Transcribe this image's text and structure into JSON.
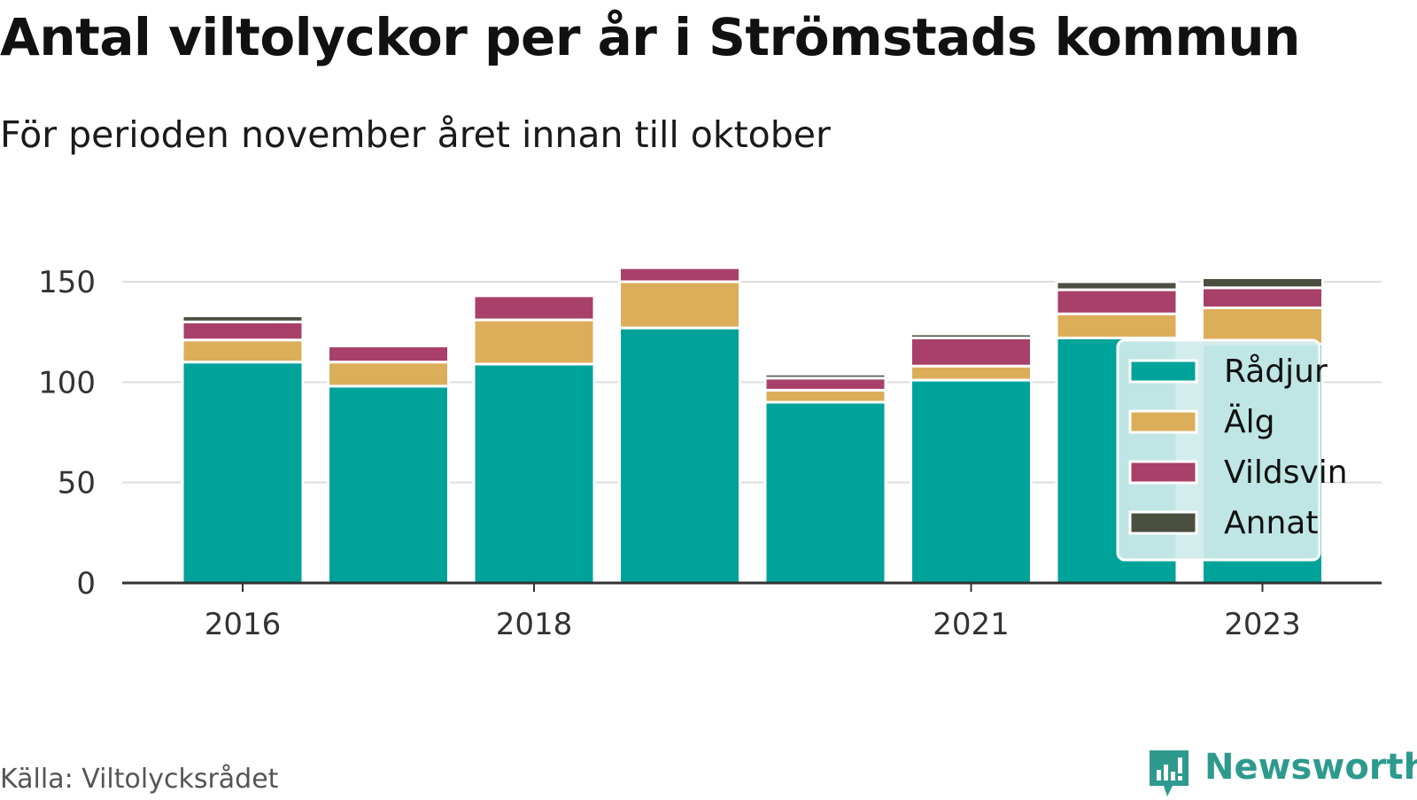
{
  "header": {
    "title": "Antal viltolyckor per år i Strömstads kommun",
    "subtitle": "För perioden november året innan till oktober"
  },
  "footer": {
    "source": "Källa: Viltolycksrådet",
    "brand": "Newsworthy"
  },
  "colors": {
    "Rådjur": "#00a39a",
    "Älg": "#dcae5a",
    "Vildsvin": "#a84069",
    "Annat": "#4a4f40",
    "brand": "#2e9a8e"
  },
  "chart_data": {
    "type": "bar",
    "stacked": true,
    "categories": [
      2016,
      2017,
      2018,
      2019,
      2020,
      2021,
      2022,
      2023
    ],
    "x_tick_labels": [
      "2016",
      "2018",
      "2021",
      "2023"
    ],
    "series": [
      {
        "name": "Rådjur",
        "values": [
          110,
          98,
          109,
          127,
          90,
          101,
          122,
          119
        ]
      },
      {
        "name": "Älg",
        "values": [
          11,
          12,
          22,
          23,
          6,
          7,
          12,
          18
        ]
      },
      {
        "name": "Vildsvin",
        "values": [
          9,
          8,
          12,
          7,
          6,
          14,
          12,
          10
        ]
      },
      {
        "name": "Annat",
        "values": [
          3,
          0,
          0,
          0,
          2,
          2,
          4,
          5
        ]
      }
    ],
    "ylim": [
      0,
      160
    ],
    "y_ticks": [
      0,
      50,
      100,
      150
    ],
    "grid": true,
    "legend_position": "inside-right"
  }
}
